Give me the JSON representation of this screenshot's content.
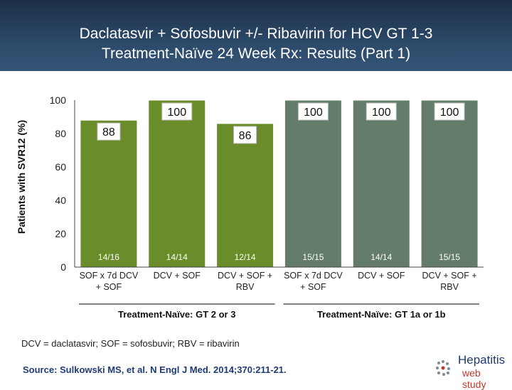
{
  "title_line1": "Daclatasvir + Sofosbuvir +/- Ribavirin for HCV GT 1-3",
  "title_line2": "Treatment-Naïve 24 Week Rx: Results (Part 1)",
  "footnote": "DCV = daclatasvir; SOF = sofosbuvir; RBV = ribavirin",
  "source": "Source: Sulkowski MS, et al. N Engl J Med. 2014;370:211-21.",
  "logo": {
    "main": "Hepatitis",
    "sub": "web study"
  },
  "colors": {
    "green": "#6b8c2a",
    "grey": "#637d6a",
    "header": "#2b4766"
  },
  "chart_data": {
    "type": "bar",
    "ylabel": "Patients with SVR12 (%)",
    "ylim": [
      0,
      100
    ],
    "yticks": [
      0,
      20,
      40,
      60,
      80,
      100
    ],
    "categories": [
      [
        "SOF x 7d DCV",
        "+ SOF"
      ],
      [
        "DCV + SOF"
      ],
      [
        "DCV + SOF +",
        "RBV"
      ],
      [
        "SOF x 7d DCV",
        "+ SOF"
      ],
      [
        "DCV + SOF"
      ],
      [
        "DCV + SOF +",
        "RBV"
      ]
    ],
    "values": [
      88,
      100,
      86,
      100,
      100,
      100
    ],
    "value_labels": [
      "88",
      "100",
      "86",
      "100",
      "100",
      "100"
    ],
    "counts": [
      "14/16",
      "14/14",
      "12/14",
      "15/15",
      "14/14",
      "15/15"
    ],
    "bar_colors": [
      "#6b8c2a",
      "#6b8c2a",
      "#6b8c2a",
      "#637d6a",
      "#637d6a",
      "#637d6a"
    ],
    "groups": [
      {
        "label": "Treatment-Naïve: GT 2 or 3",
        "bars": [
          0,
          1,
          2
        ]
      },
      {
        "label": "Treatment-Naïve: GT 1a or 1b",
        "bars": [
          3,
          4,
          5
        ]
      }
    ]
  }
}
